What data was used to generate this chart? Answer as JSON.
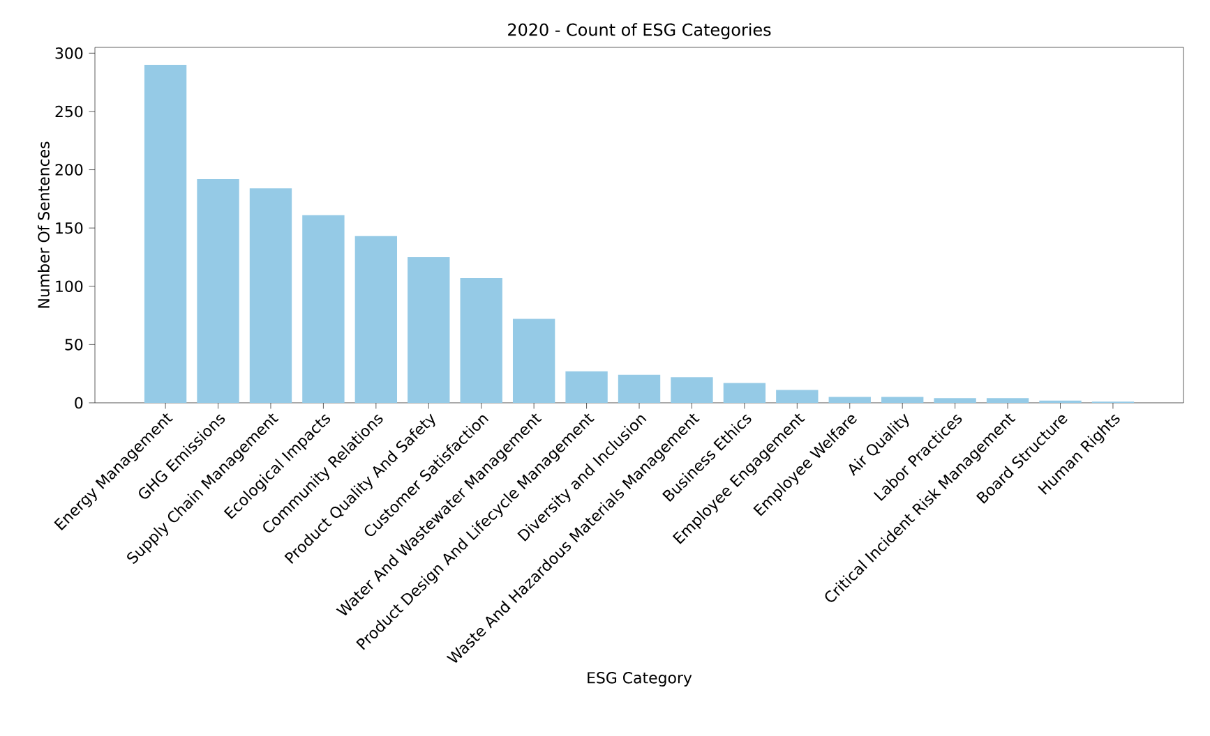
{
  "chart_data": {
    "type": "bar",
    "title": "2020 - Count of ESG Categories",
    "xlabel": "ESG Category",
    "ylabel": "Number Of Sentences",
    "categories": [
      "Energy Management",
      "GHG Emissions",
      "Supply Chain Management",
      "Ecological Impacts",
      "Community Relations",
      "Product Quality And Safety",
      "Customer Satisfaction",
      "Water And Wastewater Management",
      "Product Design And Lifecycle Management",
      "Diversity and Inclusion",
      "Waste And Hazardous Materials Management",
      "Business Ethics",
      "Employee Engagement",
      "Employee Welfare",
      "Air Quality",
      "Labor Practices",
      "Critical Incident Risk Management",
      "Board Structure",
      "Human Rights"
    ],
    "values": [
      290,
      192,
      184,
      161,
      143,
      125,
      107,
      72,
      27,
      24,
      22,
      17,
      11,
      5,
      5,
      4,
      4,
      2,
      1
    ],
    "color": "#95cae6",
    "ylim": [
      0,
      305
    ],
    "yticks": [
      0,
      50,
      100,
      150,
      200,
      250,
      300
    ],
    "grid": false
  }
}
